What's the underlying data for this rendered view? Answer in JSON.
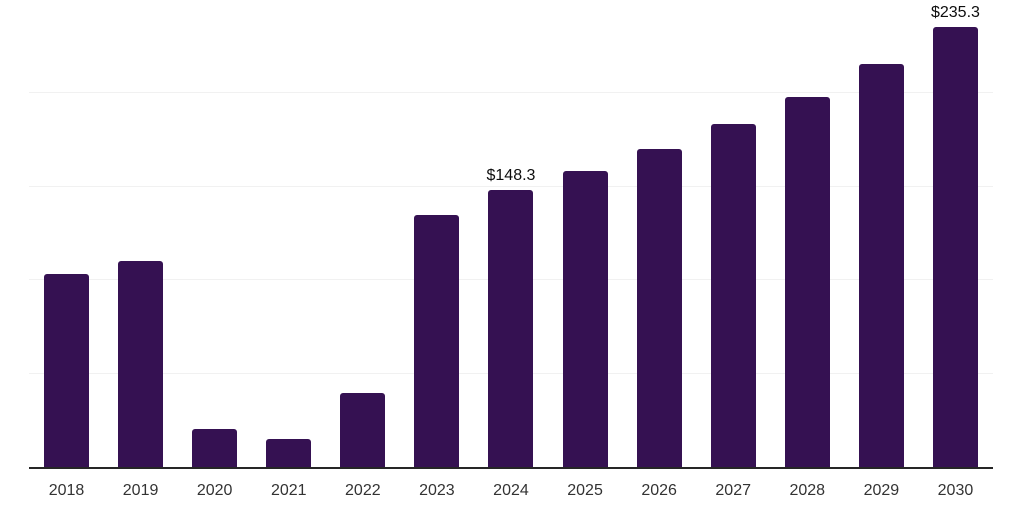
{
  "chart_data": {
    "type": "bar",
    "title": "",
    "xlabel": "",
    "ylabel": "",
    "categories": [
      "2018",
      "2019",
      "2020",
      "2021",
      "2022",
      "2023",
      "2024",
      "2025",
      "2026",
      "2027",
      "2028",
      "2029",
      "2030"
    ],
    "values": [
      103.2,
      110.4,
      20.2,
      14.8,
      39.5,
      134.8,
      148.3,
      158.6,
      170.3,
      183.7,
      198.3,
      215.8,
      235.3
    ],
    "data_labels": [
      null,
      null,
      null,
      null,
      null,
      null,
      "$148.3",
      null,
      null,
      null,
      null,
      null,
      "$235.3"
    ],
    "ylim": [
      0,
      250
    ],
    "gridline_step": 50,
    "grid": "horizontal-only",
    "legend": "none",
    "colors": {
      "bar_fill": "#351152",
      "axis_line": "#262626",
      "gridline": "#f1f1f1",
      "tick_label": "#333333",
      "data_label": "#0d0d0d",
      "background": "#ffffff"
    }
  }
}
